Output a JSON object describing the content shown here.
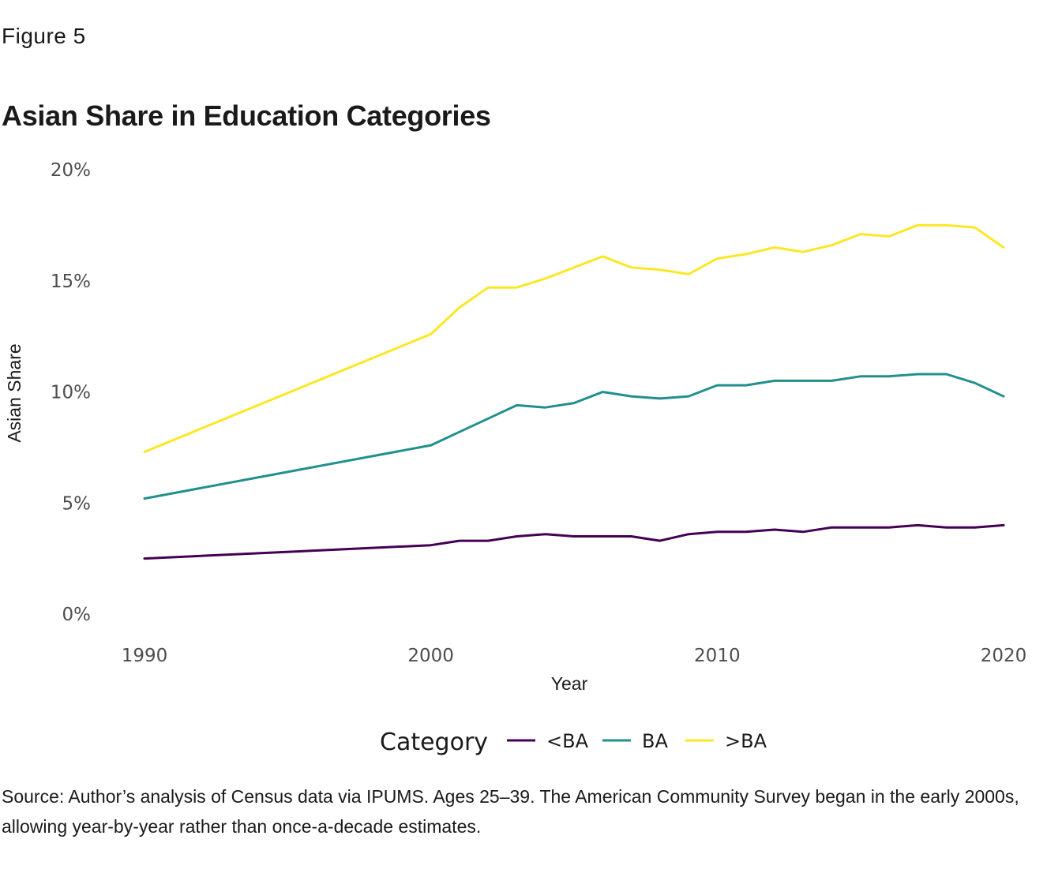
{
  "figure_label": "Figure 5",
  "source_note": "Source: Author’s analysis of Census data via IPUMS. Ages 25–39. The American Community Survey began in the early 2000s, allowing year-by-year rather than once-a-decade estimates.",
  "chart_data": {
    "type": "line",
    "title": "Asian Share in Education Categories",
    "xlabel": "Year",
    "ylabel": "Asian Share",
    "xlim": [
      1990,
      2020
    ],
    "ylim": [
      0,
      20
    ],
    "x_ticks": [
      1990,
      2000,
      2010,
      2020
    ],
    "y_ticks": [
      0,
      5,
      10,
      15,
      20
    ],
    "y_tick_labels": [
      "0%",
      "5%",
      "10%",
      "15%",
      "20%"
    ],
    "grid": false,
    "legend": {
      "title": "Category",
      "position": "bottom"
    },
    "series": [
      {
        "name": "<BA",
        "color": "#440154",
        "points": [
          [
            1990,
            2.5
          ],
          [
            2000,
            3.1
          ],
          [
            2001,
            3.3
          ],
          [
            2002,
            3.3
          ],
          [
            2003,
            3.5
          ],
          [
            2004,
            3.6
          ],
          [
            2005,
            3.5
          ],
          [
            2006,
            3.5
          ],
          [
            2007,
            3.5
          ],
          [
            2008,
            3.3
          ],
          [
            2009,
            3.6
          ],
          [
            2010,
            3.7
          ],
          [
            2011,
            3.7
          ],
          [
            2012,
            3.8
          ],
          [
            2013,
            3.7
          ],
          [
            2014,
            3.9
          ],
          [
            2015,
            3.9
          ],
          [
            2016,
            3.9
          ],
          [
            2017,
            4.0
          ],
          [
            2018,
            3.9
          ],
          [
            2019,
            3.9
          ],
          [
            2020,
            4.0
          ]
        ]
      },
      {
        "name": "BA",
        "color": "#21908C",
        "points": [
          [
            1990,
            5.2
          ],
          [
            2000,
            7.6
          ],
          [
            2001,
            8.2
          ],
          [
            2002,
            8.8
          ],
          [
            2003,
            9.4
          ],
          [
            2004,
            9.3
          ],
          [
            2005,
            9.5
          ],
          [
            2006,
            10.0
          ],
          [
            2007,
            9.8
          ],
          [
            2008,
            9.7
          ],
          [
            2009,
            9.8
          ],
          [
            2010,
            10.3
          ],
          [
            2011,
            10.3
          ],
          [
            2012,
            10.5
          ],
          [
            2013,
            10.5
          ],
          [
            2014,
            10.5
          ],
          [
            2015,
            10.7
          ],
          [
            2016,
            10.7
          ],
          [
            2017,
            10.8
          ],
          [
            2018,
            10.8
          ],
          [
            2019,
            10.4
          ],
          [
            2020,
            9.8
          ]
        ]
      },
      {
        "name": ">BA",
        "color": "#FDE725",
        "points": [
          [
            1990,
            7.3
          ],
          [
            2000,
            12.6
          ],
          [
            2001,
            13.8
          ],
          [
            2002,
            14.7
          ],
          [
            2003,
            14.7
          ],
          [
            2004,
            15.1
          ],
          [
            2005,
            15.6
          ],
          [
            2006,
            16.1
          ],
          [
            2007,
            15.6
          ],
          [
            2008,
            15.5
          ],
          [
            2009,
            15.3
          ],
          [
            2010,
            16.0
          ],
          [
            2011,
            16.2
          ],
          [
            2012,
            16.5
          ],
          [
            2013,
            16.3
          ],
          [
            2014,
            16.6
          ],
          [
            2015,
            17.1
          ],
          [
            2016,
            17.0
          ],
          [
            2017,
            17.5
          ],
          [
            2018,
            17.5
          ],
          [
            2019,
            17.4
          ],
          [
            2020,
            16.5
          ]
        ]
      }
    ]
  }
}
